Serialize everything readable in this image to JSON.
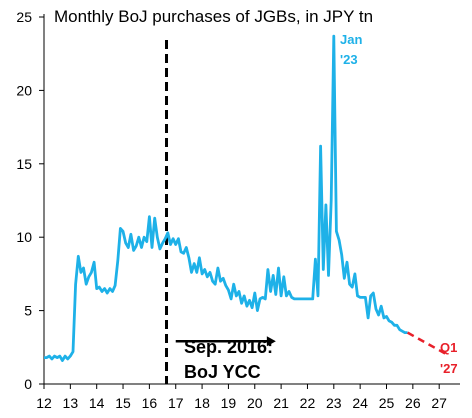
{
  "chart_data": {
    "type": "line",
    "title": "Monthly BoJ purchases of JGBs, in JPY tn",
    "xlabel": "",
    "ylabel": "",
    "xlim": [
      12,
      27.6
    ],
    "ylim": [
      0,
      25
    ],
    "x_ticks": [
      "12",
      "13",
      "14",
      "15",
      "16",
      "17",
      "18",
      "19",
      "20",
      "21",
      "22",
      "23",
      "24",
      "25",
      "26",
      "27"
    ],
    "y_ticks": [
      "0",
      "5",
      "10",
      "15",
      "20",
      "25"
    ],
    "grid": false,
    "colors": {
      "actual": "#1EB1E8",
      "projection": "#E8202A",
      "event_line": "#000000"
    },
    "series": [
      {
        "style": "solid",
        "points": [
          [
            12.0,
            1.8
          ],
          [
            12.1,
            1.8
          ],
          [
            12.2,
            1.9
          ],
          [
            12.3,
            1.7
          ],
          [
            12.4,
            1.9
          ],
          [
            12.5,
            1.8
          ],
          [
            12.6,
            1.9
          ],
          [
            12.7,
            1.6
          ],
          [
            12.8,
            1.9
          ],
          [
            12.9,
            1.7
          ],
          [
            13.0,
            1.9
          ],
          [
            13.1,
            2.2
          ],
          [
            13.2,
            6.8
          ],
          [
            13.3,
            8.7
          ],
          [
            13.4,
            7.6
          ],
          [
            13.5,
            7.9
          ],
          [
            13.6,
            6.8
          ],
          [
            13.7,
            7.3
          ],
          [
            13.8,
            7.6
          ],
          [
            13.9,
            8.3
          ],
          [
            14.0,
            6.5
          ],
          [
            14.1,
            6.6
          ],
          [
            14.2,
            6.3
          ],
          [
            14.3,
            6.5
          ],
          [
            14.4,
            6.2
          ],
          [
            14.5,
            6.5
          ],
          [
            14.6,
            6.3
          ],
          [
            14.7,
            6.7
          ],
          [
            14.8,
            8.4
          ],
          [
            14.9,
            10.6
          ],
          [
            15.0,
            10.4
          ],
          [
            15.1,
            9.6
          ],
          [
            15.2,
            9.3
          ],
          [
            15.3,
            10.2
          ],
          [
            15.4,
            9.1
          ],
          [
            15.5,
            9.4
          ],
          [
            15.6,
            10.0
          ],
          [
            15.7,
            9.3
          ],
          [
            15.8,
            10.0
          ],
          [
            15.9,
            9.7
          ],
          [
            16.0,
            11.4
          ],
          [
            16.1,
            9.3
          ],
          [
            16.2,
            11.3
          ],
          [
            16.3,
            10.0
          ],
          [
            16.4,
            9.2
          ],
          [
            16.5,
            9.6
          ],
          [
            16.6,
            9.9
          ],
          [
            16.7,
            10.3
          ],
          [
            16.8,
            9.5
          ],
          [
            16.9,
            9.9
          ],
          [
            17.0,
            9.5
          ],
          [
            17.1,
            9.9
          ],
          [
            17.2,
            9.0
          ],
          [
            17.3,
            8.9
          ],
          [
            17.4,
            9.3
          ],
          [
            17.5,
            8.6
          ],
          [
            17.6,
            7.6
          ],
          [
            17.7,
            8.2
          ],
          [
            17.8,
            7.6
          ],
          [
            17.9,
            8.6
          ],
          [
            18.0,
            7.5
          ],
          [
            18.1,
            7.8
          ],
          [
            18.2,
            7.3
          ],
          [
            18.3,
            7.6
          ],
          [
            18.4,
            7.0
          ],
          [
            18.5,
            6.8
          ],
          [
            18.6,
            7.9
          ],
          [
            18.7,
            7.0
          ],
          [
            18.8,
            7.2
          ],
          [
            18.9,
            6.7
          ],
          [
            19.0,
            6.4
          ],
          [
            19.1,
            5.8
          ],
          [
            19.2,
            6.8
          ],
          [
            19.3,
            6.0
          ],
          [
            19.4,
            6.3
          ],
          [
            19.5,
            5.5
          ],
          [
            19.6,
            6.0
          ],
          [
            19.7,
            5.3
          ],
          [
            19.8,
            5.7
          ],
          [
            19.9,
            5.2
          ],
          [
            20.0,
            6.2
          ],
          [
            20.1,
            5.0
          ],
          [
            20.2,
            5.8
          ],
          [
            20.3,
            5.9
          ],
          [
            20.4,
            5.8
          ],
          [
            20.5,
            7.8
          ],
          [
            20.6,
            6.3
          ],
          [
            20.7,
            7.4
          ],
          [
            20.8,
            6.1
          ],
          [
            20.9,
            7.9
          ],
          [
            21.0,
            6.0
          ],
          [
            21.1,
            7.3
          ],
          [
            21.2,
            6.0
          ],
          [
            21.3,
            6.3
          ],
          [
            21.4,
            5.9
          ],
          [
            21.5,
            5.8
          ],
          [
            21.6,
            5.8
          ],
          [
            21.7,
            5.8
          ],
          [
            21.8,
            5.8
          ],
          [
            21.9,
            5.8
          ],
          [
            22.0,
            5.8
          ],
          [
            22.1,
            5.8
          ],
          [
            22.2,
            5.8
          ],
          [
            22.3,
            8.5
          ],
          [
            22.4,
            6.0
          ],
          [
            22.5,
            16.2
          ],
          [
            22.6,
            7.8
          ],
          [
            22.7,
            12.2
          ],
          [
            22.8,
            7.4
          ],
          [
            22.9,
            12.5
          ],
          [
            23.0,
            23.7
          ],
          [
            23.1,
            10.4
          ],
          [
            23.2,
            9.8
          ],
          [
            23.3,
            8.8
          ],
          [
            23.4,
            7.2
          ],
          [
            23.5,
            8.3
          ],
          [
            23.6,
            6.8
          ],
          [
            23.7,
            6.6
          ],
          [
            23.8,
            7.5
          ],
          [
            23.9,
            6.0
          ],
          [
            24.0,
            5.9
          ],
          [
            24.1,
            5.9
          ],
          [
            24.2,
            5.9
          ],
          [
            24.3,
            4.5
          ],
          [
            24.4,
            6.0
          ],
          [
            24.5,
            6.2
          ],
          [
            24.6,
            5.1
          ],
          [
            24.7,
            4.7
          ],
          [
            24.8,
            5.3
          ],
          [
            24.9,
            4.5
          ],
          [
            25.0,
            4.6
          ],
          [
            25.1,
            4.3
          ],
          [
            25.2,
            4.2
          ],
          [
            25.3,
            4.0
          ],
          [
            25.4,
            4.0
          ],
          [
            25.5,
            3.7
          ],
          [
            25.6,
            3.6
          ],
          [
            25.7,
            3.5
          ],
          [
            25.8,
            3.5
          ]
        ]
      },
      {
        "style": "dashed",
        "points": [
          [
            25.8,
            3.5
          ],
          [
            26.2,
            3.1
          ],
          [
            26.6,
            2.7
          ],
          [
            27.0,
            2.3
          ],
          [
            27.3,
            2.0
          ]
        ]
      }
    ],
    "vline": {
      "x": 16.65,
      "style": "dashed"
    },
    "arrow": {
      "from": [
        17.0,
        4.0
      ],
      "to": [
        20.8,
        4.0
      ]
    },
    "annotations": {
      "peak_line1": "Jan",
      "peak_line2": "'23",
      "proj_line1": "Q1",
      "proj_line2": "'27",
      "event_line1": "Sep. 2016:",
      "event_line2": "BoJ YCC"
    }
  }
}
